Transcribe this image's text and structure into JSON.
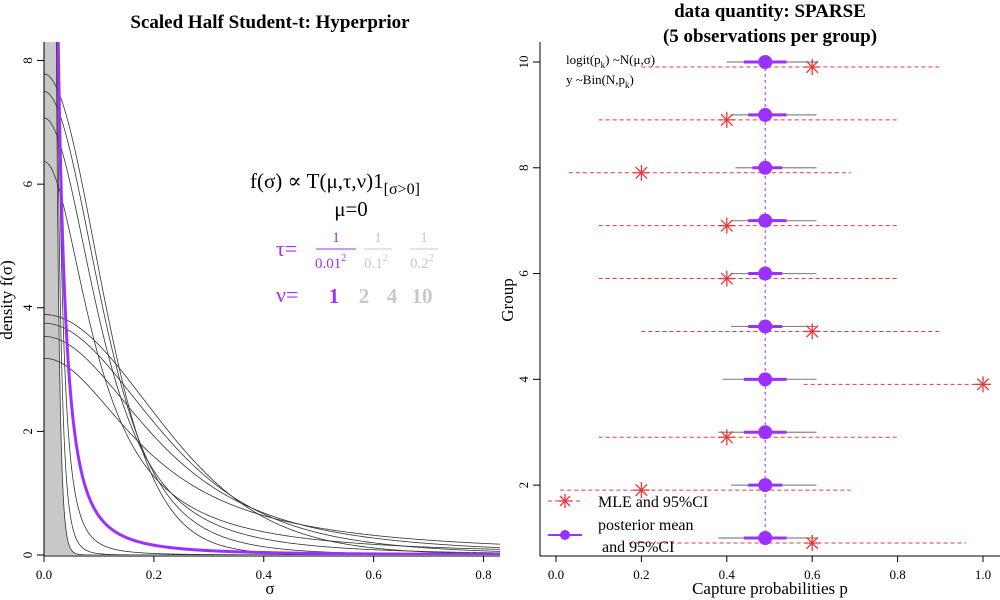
{
  "colors": {
    "purple": "#9b30ff",
    "red": "#e8383b",
    "grey": "#c8c8c8",
    "faint": "#c8c8c8",
    "black": "#000000",
    "line": "#333333"
  },
  "chart_data": [
    {
      "type": "line",
      "title": "Scaled Half Student-t: Hyperprior",
      "xlabel": "σ",
      "ylabel": "density f(σ)",
      "xlim": [
        0,
        0.83
      ],
      "ylim": [
        0,
        8.3
      ],
      "x_ticks": [
        "0.0",
        "0.2",
        "0.4",
        "0.6",
        "0.8"
      ],
      "y_ticks": [
        "0",
        "2",
        "4",
        "6",
        "8"
      ],
      "formula": {
        "f_sigma": "f(σ) ∝ T(μ,τ,ν)1",
        "subscript": "[σ>0]",
        "mu": "μ=0",
        "tau_label": "τ=",
        "tau_values": [
          {
            "num": "1",
            "den": "0.01",
            "exp": "2"
          },
          {
            "num": "1",
            "den": "0.1",
            "exp": "2"
          },
          {
            "num": "1",
            "den": "0.2",
            "exp": "2"
          }
        ],
        "nu_label": "ν=",
        "nu_values": [
          "1",
          "2",
          "4",
          "10"
        ]
      },
      "highlighted": {
        "tau_sd": 0.01,
        "nu": 1
      },
      "series_scales": [
        0.01,
        0.1,
        0.2
      ],
      "series_dfs": [
        1,
        2,
        4,
        10
      ]
    },
    {
      "type": "scatter",
      "title_line1": "data quantity: SPARSE",
      "title_line2": "(5 observations per group)",
      "xlabel": "Capture probabilities p",
      "ylabel": "Group",
      "xlim": [
        0,
        1
      ],
      "ylim": [
        1,
        10
      ],
      "x_ticks": [
        "0.0",
        "0.2",
        "0.4",
        "0.6",
        "0.8",
        "1.0"
      ],
      "y_ticks": [
        "2",
        "4",
        "6",
        "8",
        "10"
      ],
      "model_lines": [
        {
          "main": "logit(p",
          "sub": "k",
          "rest": ") ~N(μ,σ)"
        },
        {
          "main": "y ~Bin(N,p",
          "sub": "k",
          "rest": ")"
        }
      ],
      "groups": [
        1,
        2,
        3,
        4,
        5,
        6,
        7,
        8,
        9,
        10
      ],
      "mle": [
        0.6,
        0.2,
        0.4,
        1.0,
        0.6,
        0.4,
        0.4,
        0.2,
        0.4,
        0.6
      ],
      "mle_ci_low": [
        0.17,
        0.01,
        0.1,
        0.58,
        0.2,
        0.1,
        0.1,
        0.03,
        0.1,
        0.2
      ],
      "mle_ci_high": [
        0.96,
        0.69,
        0.8,
        1.0,
        0.9,
        0.8,
        0.8,
        0.69,
        0.8,
        0.9
      ],
      "posterior_mean": [
        0.49,
        0.49,
        0.49,
        0.49,
        0.49,
        0.49,
        0.49,
        0.49,
        0.49,
        0.49
      ],
      "posterior_ci_low": [
        0.38,
        0.41,
        0.38,
        0.39,
        0.41,
        0.41,
        0.41,
        0.42,
        0.41,
        0.4
      ],
      "posterior_ci_high": [
        0.61,
        0.61,
        0.61,
        0.61,
        0.61,
        0.61,
        0.61,
        0.61,
        0.61,
        0.61
      ],
      "posterior_inner_low": [
        0.44,
        0.45,
        0.44,
        0.44,
        0.45,
        0.45,
        0.45,
        0.46,
        0.45,
        0.44
      ],
      "posterior_inner_high": [
        0.54,
        0.53,
        0.54,
        0.54,
        0.53,
        0.53,
        0.54,
        0.53,
        0.54,
        0.54
      ],
      "reference_x": 0.49,
      "legend": {
        "items": [
          {
            "label": "MLE and 95%CI"
          },
          {
            "label": "posterior mean"
          },
          {
            "label": " and 95%CI"
          }
        ]
      }
    }
  ]
}
